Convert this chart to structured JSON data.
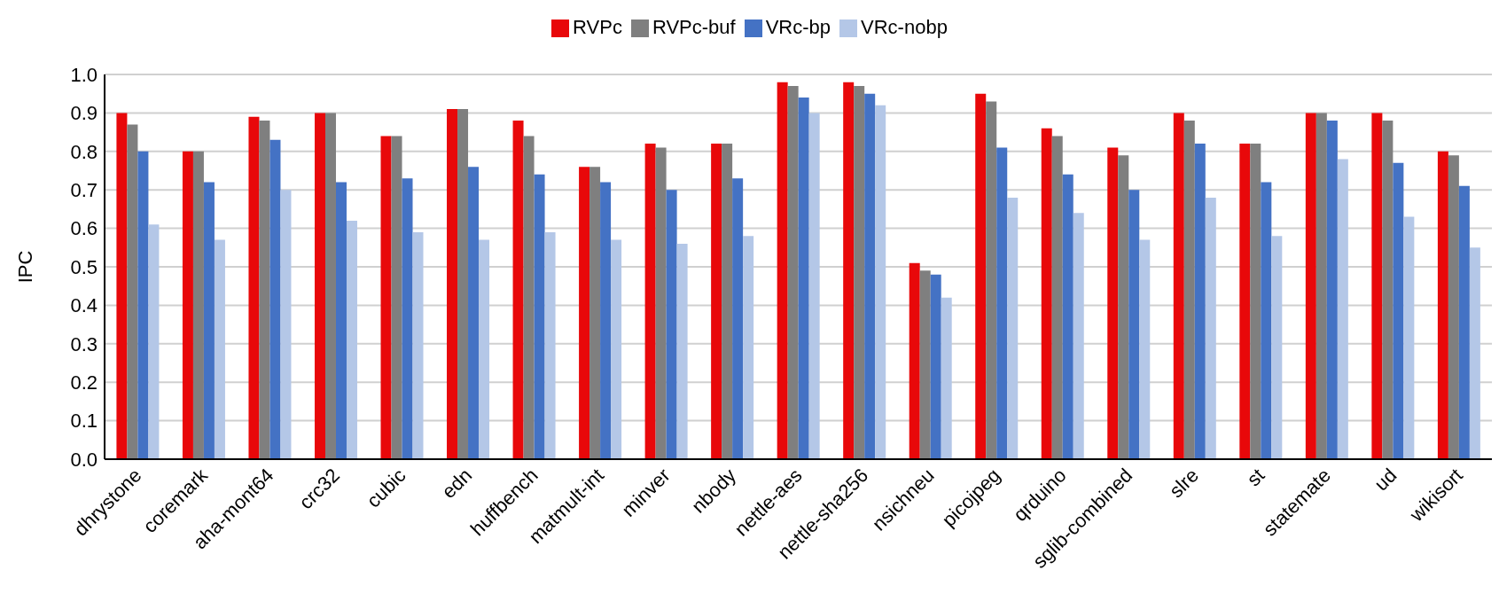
{
  "chart_data": {
    "type": "bar",
    "ylabel": "IPC",
    "categories": [
      "dhrystone",
      "coremark",
      "aha-mont64",
      "crc32",
      "cubic",
      "edn",
      "huffbench",
      "matmult-int",
      "minver",
      "nbody",
      "nettle-aes",
      "nettle-sha256",
      "nsichneu",
      "picojpeg",
      "qrduino",
      "sglib-combined",
      "slre",
      "st",
      "statemate",
      "ud",
      "wikisort"
    ],
    "series": [
      {
        "name": "RVPc",
        "color": "#e8080a",
        "values": [
          0.9,
          0.8,
          0.89,
          0.9,
          0.84,
          0.91,
          0.88,
          0.76,
          0.82,
          0.82,
          0.98,
          0.98,
          0.51,
          0.95,
          0.86,
          0.81,
          0.9,
          0.82,
          0.9,
          0.9,
          0.8
        ]
      },
      {
        "name": "RVPc-buf",
        "color": "#7f7f7f",
        "values": [
          0.87,
          0.8,
          0.88,
          0.9,
          0.84,
          0.91,
          0.84,
          0.76,
          0.81,
          0.82,
          0.97,
          0.97,
          0.49,
          0.93,
          0.84,
          0.79,
          0.88,
          0.82,
          0.9,
          0.88,
          0.79
        ]
      },
      {
        "name": "VRc-bp",
        "color": "#4472c4",
        "values": [
          0.8,
          0.72,
          0.83,
          0.72,
          0.73,
          0.76,
          0.74,
          0.72,
          0.7,
          0.73,
          0.94,
          0.95,
          0.48,
          0.81,
          0.74,
          0.7,
          0.82,
          0.72,
          0.88,
          0.77,
          0.71
        ]
      },
      {
        "name": "VRc-nobp",
        "color": "#b4c7e7",
        "values": [
          0.61,
          0.57,
          0.7,
          0.62,
          0.59,
          0.57,
          0.59,
          0.57,
          0.56,
          0.58,
          0.9,
          0.92,
          0.42,
          0.68,
          0.64,
          0.57,
          0.68,
          0.58,
          0.78,
          0.63,
          0.55
        ]
      }
    ],
    "ylim": [
      0,
      1
    ],
    "yticks": [
      {
        "value": 0,
        "label": "0.0"
      },
      0.1,
      0.2,
      0.3,
      0.4,
      0.5,
      0.6,
      0.7,
      0.8,
      0.9,
      {
        "value": 1,
        "label": "1.0"
      }
    ],
    "grid": "y",
    "legend": "top"
  }
}
